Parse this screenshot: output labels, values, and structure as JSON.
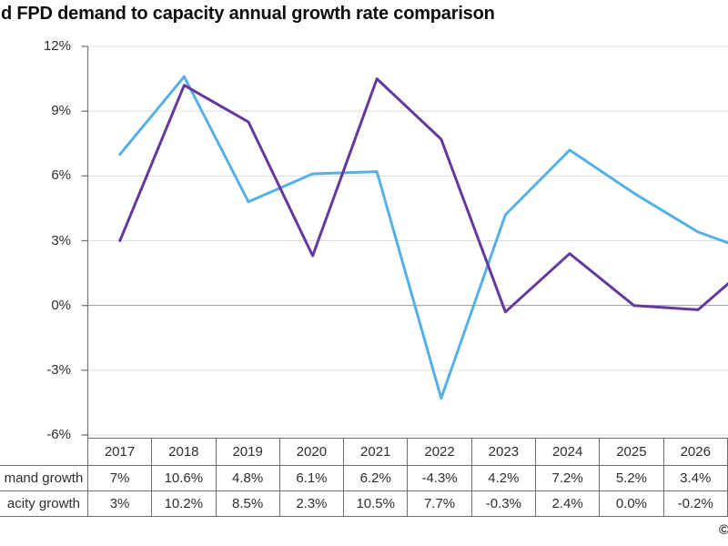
{
  "header": {
    "title": "d FPD demand to capacity annual growth rate comparison"
  },
  "footer": {
    "copyright_mark": "©"
  },
  "chart_data": {
    "type": "line",
    "title": "d FPD demand to capacity annual growth rate comparison",
    "categories": [
      "2017",
      "2018",
      "2019",
      "2020",
      "2021",
      "2022",
      "2023",
      "2024",
      "2025",
      "2026"
    ],
    "series": [
      {
        "name": "mand growth",
        "color": "#54b0e6",
        "values": [
          7,
          10.6,
          4.8,
          6.1,
          6.2,
          -4.3,
          4.2,
          7.2,
          5.2,
          3.4
        ],
        "display_values": [
          "7%",
          "10.6%",
          "4.8%",
          "6.1%",
          "6.2%",
          "-4.3%",
          "4.2%",
          "7.2%",
          "5.2%",
          "3.4%"
        ],
        "right_edge_value": 2.9
      },
      {
        "name": "acity growth",
        "color": "#63399e",
        "values": [
          3,
          10.2,
          8.5,
          2.3,
          10.5,
          7.7,
          -0.3,
          2.4,
          0.0,
          -0.2
        ],
        "display_values": [
          "3%",
          "10.2%",
          "8.5%",
          "2.3%",
          "10.5%",
          "7.7%",
          "-0.3%",
          "2.4%",
          "0.0%",
          "-0.2%"
        ],
        "right_edge_value": 1.0
      }
    ],
    "y_axis": {
      "tick_labels": [
        "12%",
        "9%",
        "6%",
        "3%",
        "0%",
        "-3%",
        "-6%"
      ],
      "tick_values": [
        12,
        9,
        6,
        3,
        0,
        -3,
        -6
      ],
      "min": -6,
      "max": 12
    },
    "ylim": [
      -6,
      12
    ],
    "grid": true,
    "legend_position": "none",
    "x_axis_style": "data-table"
  },
  "colors": {
    "gridline": "#dcdcdc",
    "zero_line": "#999999",
    "axis": "#7a7a7a",
    "table_border": "#6e6e6e",
    "text": "#2e2e2e",
    "title": "#0d0d0d",
    "background": "#ffffff"
  }
}
